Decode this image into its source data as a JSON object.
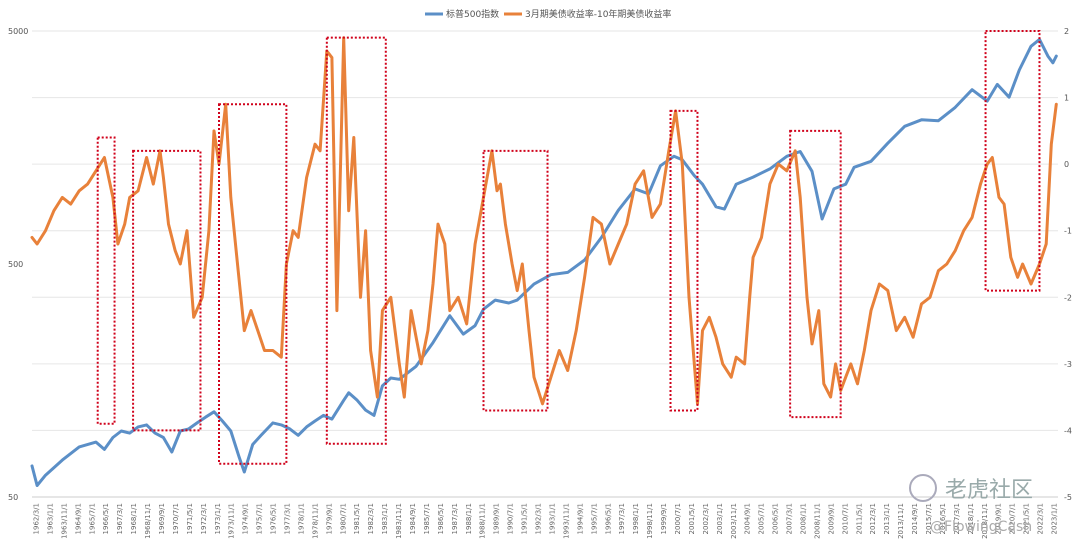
{
  "chart_data": {
    "type": "line",
    "title": "",
    "xlabel": "",
    "ylabel_left": "",
    "ylabel_right": "",
    "left_axis": {
      "scale": "log",
      "ticks": [
        "5000",
        "500",
        "50"
      ],
      "range": [
        50,
        5000
      ]
    },
    "right_axis": {
      "scale": "linear",
      "ticks": [
        "2",
        "1",
        "0",
        "-1",
        "-2",
        "-3",
        "-4",
        "-5"
      ],
      "range": [
        -5,
        2
      ]
    },
    "legend_position": "top-center",
    "grid": true,
    "series": [
      {
        "name": "标普500指数",
        "color": "#5b8fc7",
        "axis": "left",
        "points": [
          [
            1962.2,
            68
          ],
          [
            1962.5,
            56
          ],
          [
            1963.0,
            62
          ],
          [
            1964.0,
            72
          ],
          [
            1965.0,
            82
          ],
          [
            1966.0,
            86
          ],
          [
            1966.5,
            80
          ],
          [
            1967.0,
            90
          ],
          [
            1967.5,
            96
          ],
          [
            1968.0,
            94
          ],
          [
            1968.5,
            100
          ],
          [
            1969.0,
            102
          ],
          [
            1969.5,
            94
          ],
          [
            1970.0,
            90
          ],
          [
            1970.5,
            78
          ],
          [
            1971.0,
            96
          ],
          [
            1971.5,
            98
          ],
          [
            1972.0,
            104
          ],
          [
            1972.5,
            110
          ],
          [
            1973.0,
            116
          ],
          [
            1973.5,
            106
          ],
          [
            1974.0,
            96
          ],
          [
            1974.5,
            74
          ],
          [
            1974.8,
            64
          ],
          [
            1975.3,
            84
          ],
          [
            1975.8,
            92
          ],
          [
            1976.5,
            104
          ],
          [
            1977.0,
            102
          ],
          [
            1977.5,
            98
          ],
          [
            1978.0,
            92
          ],
          [
            1978.5,
            100
          ],
          [
            1979.0,
            106
          ],
          [
            1979.5,
            112
          ],
          [
            1980.0,
            108
          ],
          [
            1980.7,
            130
          ],
          [
            1981.0,
            140
          ],
          [
            1981.5,
            130
          ],
          [
            1982.0,
            118
          ],
          [
            1982.5,
            112
          ],
          [
            1983.0,
            150
          ],
          [
            1983.5,
            162
          ],
          [
            1984.0,
            160
          ],
          [
            1985.0,
            182
          ],
          [
            1986.0,
            230
          ],
          [
            1987.0,
            300
          ],
          [
            1987.8,
            250
          ],
          [
            1988.5,
            272
          ],
          [
            1989.0,
            320
          ],
          [
            1989.7,
            350
          ],
          [
            1990.5,
            340
          ],
          [
            1991.0,
            350
          ],
          [
            1992.0,
            410
          ],
          [
            1993.0,
            450
          ],
          [
            1994.0,
            460
          ],
          [
            1995.0,
            520
          ],
          [
            1996.0,
            650
          ],
          [
            1997.0,
            850
          ],
          [
            1998.0,
            1050
          ],
          [
            1998.8,
            1000
          ],
          [
            1999.5,
            1320
          ],
          [
            2000.3,
            1450
          ],
          [
            2000.8,
            1400
          ],
          [
            2001.5,
            1200
          ],
          [
            2002.0,
            1100
          ],
          [
            2002.8,
            880
          ],
          [
            2003.3,
            860
          ],
          [
            2004.0,
            1100
          ],
          [
            2005.0,
            1180
          ],
          [
            2006.0,
            1280
          ],
          [
            2007.0,
            1450
          ],
          [
            2007.8,
            1520
          ],
          [
            2008.5,
            1250
          ],
          [
            2009.1,
            780
          ],
          [
            2009.8,
            1050
          ],
          [
            2010.5,
            1100
          ],
          [
            2011.0,
            1300
          ],
          [
            2012.0,
            1380
          ],
          [
            2013.0,
            1650
          ],
          [
            2014.0,
            1950
          ],
          [
            2015.0,
            2080
          ],
          [
            2016.0,
            2060
          ],
          [
            2017.0,
            2350
          ],
          [
            2018.0,
            2800
          ],
          [
            2018.9,
            2500
          ],
          [
            2019.5,
            2950
          ],
          [
            2020.2,
            2600
          ],
          [
            2020.8,
            3400
          ],
          [
            2021.5,
            4300
          ],
          [
            2022.0,
            4600
          ],
          [
            2022.5,
            3900
          ],
          [
            2022.8,
            3650
          ],
          [
            2023.0,
            3900
          ]
        ]
      },
      {
        "name": "3月期美债收益率-10年期美债收益率",
        "color": "#e8813a",
        "axis": "right",
        "points": [
          [
            1962.2,
            -1.1
          ],
          [
            1962.5,
            -1.2
          ],
          [
            1963.0,
            -1.0
          ],
          [
            1963.5,
            -0.7
          ],
          [
            1964.0,
            -0.5
          ],
          [
            1964.5,
            -0.6
          ],
          [
            1965.0,
            -0.4
          ],
          [
            1965.5,
            -0.3
          ],
          [
            1966.0,
            -0.1
          ],
          [
            1966.5,
            0.1
          ],
          [
            1967.0,
            -0.5
          ],
          [
            1967.3,
            -1.2
          ],
          [
            1967.7,
            -0.9
          ],
          [
            1968.0,
            -0.5
          ],
          [
            1968.5,
            -0.4
          ],
          [
            1969.0,
            0.1
          ],
          [
            1969.4,
            -0.3
          ],
          [
            1969.8,
            0.2
          ],
          [
            1970.0,
            -0.2
          ],
          [
            1970.3,
            -0.9
          ],
          [
            1970.7,
            -1.3
          ],
          [
            1971.0,
            -1.5
          ],
          [
            1971.4,
            -1.0
          ],
          [
            1971.8,
            -2.3
          ],
          [
            1972.3,
            -2.0
          ],
          [
            1972.7,
            -1.0
          ],
          [
            1973.0,
            0.5
          ],
          [
            1973.3,
            0.0
          ],
          [
            1973.7,
            0.9
          ],
          [
            1974.0,
            -0.5
          ],
          [
            1974.4,
            -1.5
          ],
          [
            1974.8,
            -2.5
          ],
          [
            1975.2,
            -2.2
          ],
          [
            1975.6,
            -2.5
          ],
          [
            1976.0,
            -2.8
          ],
          [
            1976.5,
            -2.8
          ],
          [
            1977.0,
            -2.9
          ],
          [
            1977.3,
            -1.5
          ],
          [
            1977.7,
            -1.0
          ],
          [
            1978.0,
            -1.1
          ],
          [
            1978.5,
            -0.2
          ],
          [
            1979.0,
            0.3
          ],
          [
            1979.3,
            0.2
          ],
          [
            1979.7,
            1.7
          ],
          [
            1980.0,
            1.6
          ],
          [
            1980.3,
            -2.2
          ],
          [
            1980.7,
            1.9
          ],
          [
            1981.0,
            -0.7
          ],
          [
            1981.3,
            0.4
          ],
          [
            1981.7,
            -2.0
          ],
          [
            1982.0,
            -1.0
          ],
          [
            1982.3,
            -2.8
          ],
          [
            1982.7,
            -3.5
          ],
          [
            1983.0,
            -2.2
          ],
          [
            1983.5,
            -2.0
          ],
          [
            1984.0,
            -3.0
          ],
          [
            1984.3,
            -3.5
          ],
          [
            1984.7,
            -2.2
          ],
          [
            1985.0,
            -2.6
          ],
          [
            1985.3,
            -3.0
          ],
          [
            1985.7,
            -2.5
          ],
          [
            1986.0,
            -1.8
          ],
          [
            1986.3,
            -0.9
          ],
          [
            1986.7,
            -1.2
          ],
          [
            1987.0,
            -2.2
          ],
          [
            1987.5,
            -2.0
          ],
          [
            1988.0,
            -2.4
          ],
          [
            1988.5,
            -1.2
          ],
          [
            1989.0,
            -0.5
          ],
          [
            1989.5,
            0.2
          ],
          [
            1989.8,
            -0.4
          ],
          [
            1990.0,
            -0.3
          ],
          [
            1990.3,
            -0.9
          ],
          [
            1990.7,
            -1.5
          ],
          [
            1991.0,
            -1.9
          ],
          [
            1991.3,
            -1.5
          ],
          [
            1991.7,
            -2.5
          ],
          [
            1992.0,
            -3.2
          ],
          [
            1992.5,
            -3.6
          ],
          [
            1993.0,
            -3.2
          ],
          [
            1993.5,
            -2.8
          ],
          [
            1994.0,
            -3.1
          ],
          [
            1994.5,
            -2.5
          ],
          [
            1995.0,
            -1.7
          ],
          [
            1995.5,
            -0.8
          ],
          [
            1996.0,
            -0.9
          ],
          [
            1996.5,
            -1.5
          ],
          [
            1997.0,
            -1.2
          ],
          [
            1997.5,
            -0.9
          ],
          [
            1998.0,
            -0.3
          ],
          [
            1998.5,
            -0.1
          ],
          [
            1999.0,
            -0.8
          ],
          [
            1999.5,
            -0.6
          ],
          [
            2000.0,
            0.2
          ],
          [
            2000.4,
            0.8
          ],
          [
            2000.8,
            0.0
          ],
          [
            2001.2,
            -2.0
          ],
          [
            2001.7,
            -3.6
          ],
          [
            2002.0,
            -2.5
          ],
          [
            2002.4,
            -2.3
          ],
          [
            2002.8,
            -2.6
          ],
          [
            2003.2,
            -3.0
          ],
          [
            2003.7,
            -3.2
          ],
          [
            2004.0,
            -2.9
          ],
          [
            2004.5,
            -3.0
          ],
          [
            2004.8,
            -2.0
          ],
          [
            2005.0,
            -1.4
          ],
          [
            2005.5,
            -1.1
          ],
          [
            2006.0,
            -0.3
          ],
          [
            2006.5,
            0.0
          ],
          [
            2007.0,
            -0.1
          ],
          [
            2007.5,
            0.2
          ],
          [
            2007.8,
            -0.5
          ],
          [
            2008.2,
            -2.0
          ],
          [
            2008.5,
            -2.7
          ],
          [
            2008.9,
            -2.2
          ],
          [
            2009.2,
            -3.3
          ],
          [
            2009.6,
            -3.5
          ],
          [
            2009.9,
            -3.0
          ],
          [
            2010.2,
            -3.4
          ],
          [
            2010.5,
            -3.2
          ],
          [
            2010.8,
            -3.0
          ],
          [
            2011.2,
            -3.3
          ],
          [
            2011.6,
            -2.8
          ],
          [
            2012.0,
            -2.2
          ],
          [
            2012.5,
            -1.8
          ],
          [
            2013.0,
            -1.9
          ],
          [
            2013.5,
            -2.5
          ],
          [
            2014.0,
            -2.3
          ],
          [
            2014.5,
            -2.6
          ],
          [
            2015.0,
            -2.1
          ],
          [
            2015.5,
            -2.0
          ],
          [
            2016.0,
            -1.6
          ],
          [
            2016.5,
            -1.5
          ],
          [
            2017.0,
            -1.3
          ],
          [
            2017.5,
            -1.0
          ],
          [
            2018.0,
            -0.8
          ],
          [
            2018.5,
            -0.3
          ],
          [
            2018.9,
            0.0
          ],
          [
            2019.2,
            0.1
          ],
          [
            2019.6,
            -0.5
          ],
          [
            2019.9,
            -0.6
          ],
          [
            2020.3,
            -1.4
          ],
          [
            2020.7,
            -1.7
          ],
          [
            2021.0,
            -1.5
          ],
          [
            2021.5,
            -1.8
          ],
          [
            2022.0,
            -1.5
          ],
          [
            2022.4,
            -1.2
          ],
          [
            2022.7,
            0.3
          ],
          [
            2023.0,
            0.9
          ]
        ]
      }
    ],
    "x_tick_labels": [
      "1962/3/1",
      "1963/1/1",
      "1963/11/1",
      "1964/9/1",
      "1965/7/1",
      "1966/5/1",
      "1967/3/1",
      "1968/1/1",
      "1968/11/1",
      "1969/9/1",
      "1970/7/1",
      "1971/5/1",
      "1972/3/1",
      "1973/1/1",
      "1973/11/1",
      "1974/9/1",
      "1975/7/1",
      "1976/5/1",
      "1977/3/1",
      "1978/1/1",
      "1978/11/1",
      "1979/9/1",
      "1980/7/1",
      "1981/5/1",
      "1982/3/1",
      "1983/1/1",
      "1983/11/1",
      "1984/9/1",
      "1985/7/1",
      "1986/5/1",
      "1987/3/1",
      "1988/1/1",
      "1988/11/1",
      "1989/9/1",
      "1990/7/1",
      "1991/5/1",
      "1992/3/1",
      "1993/1/1",
      "1993/11/1",
      "1994/9/1",
      "1995/7/1",
      "1996/5/1",
      "1997/3/1",
      "1998/1/1",
      "1998/11/1",
      "1999/9/1",
      "2000/7/1",
      "2001/5/1",
      "2002/3/1",
      "2003/1/1",
      "2003/11/1",
      "2004/9/1",
      "2005/7/1",
      "2006/5/1",
      "2007/3/1",
      "2008/1/1",
      "2008/11/1",
      "2009/9/1",
      "2010/7/1",
      "2011/5/1",
      "2012/3/1",
      "2013/1/1",
      "2013/11/1",
      "2014/9/1",
      "2015/7/1",
      "2016/5/1",
      "2017/3/1",
      "2018/1/1",
      "2018/11/1",
      "2019/9/1",
      "2020/7/1",
      "2021/5/1",
      "2022/3/1",
      "2023/1/1"
    ],
    "highlight_periods": [
      {
        "x0": 1966.1,
        "x1": 1967.1,
        "y_top": 0.4,
        "y_bottom": -3.9
      },
      {
        "x0": 1968.2,
        "x1": 1972.2,
        "y_top": 0.2,
        "y_bottom": -4.0
      },
      {
        "x0": 1973.3,
        "x1": 1977.3,
        "y_top": 0.9,
        "y_bottom": -4.5
      },
      {
        "x0": 1979.7,
        "x1": 1983.2,
        "y_top": 1.9,
        "y_bottom": -4.2
      },
      {
        "x0": 1989.0,
        "x1": 1992.8,
        "y_top": 0.2,
        "y_bottom": -3.7
      },
      {
        "x0": 2000.1,
        "x1": 2001.7,
        "y_top": 0.8,
        "y_bottom": -3.7
      },
      {
        "x0": 2007.2,
        "x1": 2010.2,
        "y_top": 0.5,
        "y_bottom": -3.8
      },
      {
        "x0": 2018.8,
        "x1": 2022.0,
        "y_top": 2.0,
        "y_bottom": -1.9
      }
    ]
  },
  "watermark": {
    "brand": "老虎社区",
    "handle": "@FlowingCash"
  }
}
